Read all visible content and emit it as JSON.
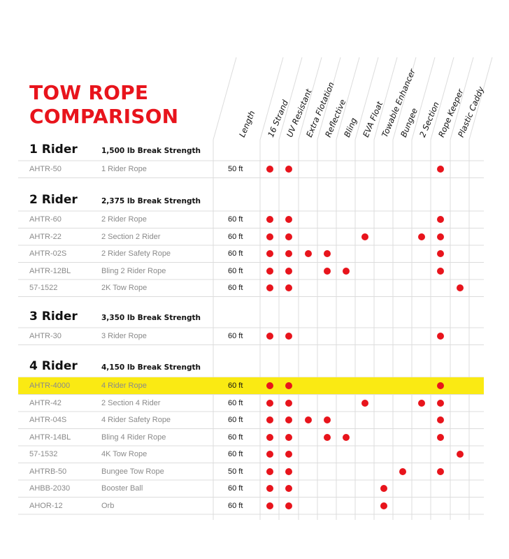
{
  "title": [
    "TOW ROPE",
    "COMPARISON"
  ],
  "columns": [
    "Length",
    "16 Strand",
    "UV Resistant",
    "Extra Flotation",
    "Reflective",
    "Bling",
    "EVA Float",
    "Towable Enhancer",
    "Bungee",
    "2 Section",
    "Rope Keeper",
    "Plastic Caddy"
  ],
  "colors": {
    "accent": "#e8141c",
    "highlight": "#faea13",
    "grid": "#dcdcdc"
  },
  "groups": [
    {
      "name": "1 Rider",
      "strength": "1,500 lb Break Strength",
      "rows": [
        {
          "sku": "AHTR-50",
          "desc": "1 Rider Rope",
          "length": "50 ft",
          "features": [
            0,
            1,
            9
          ],
          "highlight": false
        }
      ]
    },
    {
      "name": "2 Rider",
      "strength": "2,375 lb Break Strength",
      "rows": [
        {
          "sku": "AHTR-60",
          "desc": "2 Rider Rope",
          "length": "60 ft",
          "features": [
            0,
            1,
            9
          ],
          "highlight": false
        },
        {
          "sku": "AHTR-22",
          "desc": "2 Section 2 Rider",
          "length": "60 ft",
          "features": [
            0,
            1,
            5,
            8,
            9
          ],
          "highlight": false
        },
        {
          "sku": "AHTR-02S",
          "desc": "2 Rider Safety Rope",
          "length": "60 ft",
          "features": [
            0,
            1,
            2,
            3,
            9
          ],
          "highlight": false
        },
        {
          "sku": "AHTR-12BL",
          "desc": "Bling 2 Rider Rope",
          "length": "60 ft",
          "features": [
            0,
            1,
            3,
            4,
            9
          ],
          "highlight": false
        },
        {
          "sku": "57-1522",
          "desc": "2K Tow Rope",
          "length": "60 ft",
          "features": [
            0,
            1,
            10
          ],
          "highlight": false
        }
      ]
    },
    {
      "name": "3 Rider",
      "strength": "3,350 lb Break Strength",
      "rows": [
        {
          "sku": "AHTR-30",
          "desc": "3 Rider Rope",
          "length": "60 ft",
          "features": [
            0,
            1,
            9
          ],
          "highlight": false
        }
      ]
    },
    {
      "name": "4 Rider",
      "strength": "4,150 lb Break Strength",
      "rows": [
        {
          "sku": "AHTR-4000",
          "desc": "4 Rider Rope",
          "length": "60 ft",
          "features": [
            0,
            1,
            9
          ],
          "highlight": true
        },
        {
          "sku": "AHTR-42",
          "desc": "2 Section 4 Rider",
          "length": "60 ft",
          "features": [
            0,
            1,
            5,
            8,
            9
          ],
          "highlight": false
        },
        {
          "sku": "AHTR-04S",
          "desc": "4 Rider Safety Rope",
          "length": "60 ft",
          "features": [
            0,
            1,
            2,
            3,
            9
          ],
          "highlight": false
        },
        {
          "sku": "AHTR-14BL",
          "desc": "Bling 4 Rider Rope",
          "length": "60 ft",
          "features": [
            0,
            1,
            3,
            4,
            9
          ],
          "highlight": false
        },
        {
          "sku": "57-1532",
          "desc": "4K Tow Rope",
          "length": "60 ft",
          "features": [
            0,
            1,
            10
          ],
          "highlight": false
        },
        {
          "sku": "AHTRB-50",
          "desc": "Bungee Tow Rope",
          "length": "50 ft",
          "features": [
            0,
            1,
            7,
            9
          ],
          "highlight": false
        },
        {
          "sku": "AHBB-2030",
          "desc": "Booster Ball",
          "length": "60 ft",
          "features": [
            0,
            1,
            6
          ],
          "highlight": false
        },
        {
          "sku": "AHOR-12",
          "desc": "Orb",
          "length": "60 ft",
          "features": [
            0,
            1,
            6
          ],
          "highlight": false
        }
      ]
    }
  ]
}
